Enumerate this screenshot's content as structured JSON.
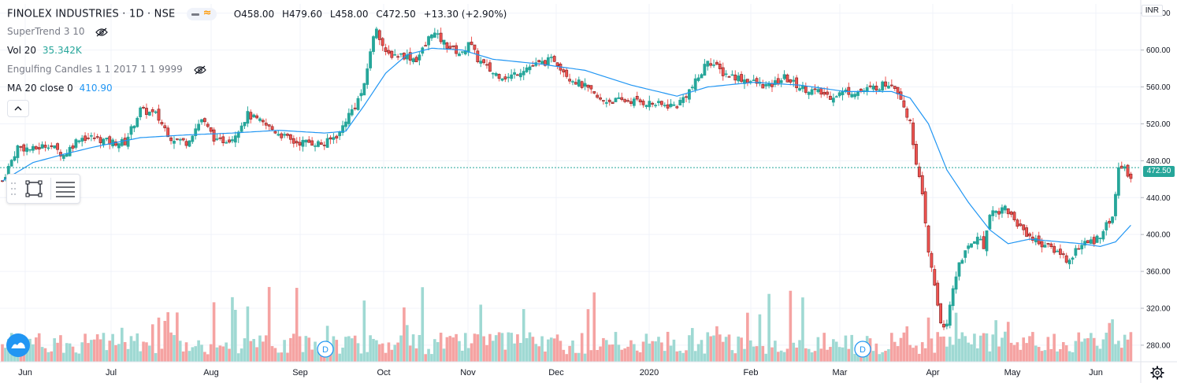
{
  "header": {
    "symbol": "FINOLEX INDUSTRIES · 1D · NSE",
    "open": "O458.00",
    "high": "H479.60",
    "low": "L458.00",
    "close": "C472.50",
    "change": "+13.30 (+2.90%)"
  },
  "indicators": [
    {
      "name": "SuperTrend 3 10",
      "value": "",
      "hidden": true
    },
    {
      "name": "Vol 20",
      "value": "35.342K",
      "hidden": false
    },
    {
      "name": "Engulfing Candles 1 1 2017 1 1 9999",
      "value": "",
      "hidden": true
    },
    {
      "name": "MA 20 close 0",
      "value": "410.90",
      "hidden": false
    }
  ],
  "currency": "INR",
  "last_price_label": "472.50",
  "colors": {
    "up": "#26a69a",
    "down": "#ef5350",
    "ma": "#2196f3",
    "grid": "#f0f3fa",
    "vol_up": "#9fd9d3",
    "vol_down": "#f5a3a2"
  },
  "icons": [
    "eye-off-icon",
    "chevron-up-icon",
    "rectangle-tool-icon",
    "lines-tool-icon",
    "tradingview-logo-icon",
    "gear-icon"
  ],
  "chart_data": {
    "type": "candlestick",
    "title": "FINOLEX INDUSTRIES · 1D · NSE",
    "y_ticks": [
      640,
      600,
      560,
      520,
      480,
      440,
      400,
      360,
      320,
      280
    ],
    "ylim": [
      262,
      650
    ],
    "x_ticks": [
      "Jun",
      "Jul",
      "Aug",
      "Sep",
      "Oct",
      "Nov",
      "Dec",
      "2020",
      "Feb",
      "Mar",
      "Apr",
      "May",
      "Jun"
    ],
    "dividend_markers": [
      "D",
      "D"
    ],
    "price_path": [
      [
        0,
        458
      ],
      [
        5,
        495
      ],
      [
        10,
        492
      ],
      [
        15,
        498
      ],
      [
        20,
        486
      ],
      [
        25,
        505
      ],
      [
        30,
        505
      ],
      [
        35,
        500
      ],
      [
        40,
        500
      ],
      [
        45,
        535
      ],
      [
        50,
        530
      ],
      [
        55,
        505
      ],
      [
        60,
        500
      ],
      [
        65,
        525
      ],
      [
        70,
        500
      ],
      [
        75,
        505
      ],
      [
        80,
        530
      ],
      [
        85,
        520
      ],
      [
        90,
        510
      ],
      [
        95,
        500
      ],
      [
        100,
        500
      ],
      [
        105,
        498
      ],
      [
        110,
        510
      ],
      [
        112,
        525
      ],
      [
        115,
        540
      ],
      [
        118,
        560
      ],
      [
        120,
        600
      ],
      [
        122,
        625
      ],
      [
        125,
        595
      ],
      [
        130,
        595
      ],
      [
        135,
        590
      ],
      [
        138,
        605
      ],
      [
        140,
        620
      ],
      [
        145,
        605
      ],
      [
        150,
        595
      ],
      [
        152,
        610
      ],
      [
        155,
        590
      ],
      [
        160,
        575
      ],
      [
        165,
        570
      ],
      [
        170,
        580
      ],
      [
        175,
        585
      ],
      [
        180,
        590
      ],
      [
        185,
        570
      ],
      [
        190,
        560
      ],
      [
        195,
        545
      ],
      [
        200,
        545
      ],
      [
        205,
        545
      ],
      [
        210,
        543
      ],
      [
        215,
        540
      ],
      [
        220,
        540
      ],
      [
        225,
        560
      ],
      [
        228,
        575
      ],
      [
        230,
        590
      ],
      [
        235,
        575
      ],
      [
        240,
        570
      ],
      [
        245,
        565
      ],
      [
        250,
        560
      ],
      [
        255,
        570
      ],
      [
        260,
        560
      ],
      [
        265,
        555
      ],
      [
        270,
        550
      ],
      [
        275,
        555
      ],
      [
        280,
        555
      ],
      [
        285,
        560
      ],
      [
        290,
        565
      ],
      [
        293,
        550
      ],
      [
        296,
        520
      ],
      [
        300,
        440
      ],
      [
        302,
        380
      ],
      [
        304,
        345
      ],
      [
        306,
        305
      ],
      [
        308,
        300
      ],
      [
        310,
        340
      ],
      [
        312,
        370
      ],
      [
        315,
        385
      ],
      [
        318,
        400
      ],
      [
        320,
        385
      ],
      [
        322,
        425
      ],
      [
        325,
        425
      ],
      [
        327,
        430
      ],
      [
        330,
        415
      ],
      [
        333,
        405
      ],
      [
        336,
        395
      ],
      [
        339,
        390
      ],
      [
        342,
        385
      ],
      [
        345,
        380
      ],
      [
        348,
        370
      ],
      [
        350,
        385
      ],
      [
        353,
        390
      ],
      [
        356,
        393
      ],
      [
        358,
        400
      ],
      [
        360,
        410
      ],
      [
        362,
        420
      ],
      [
        363,
        440
      ],
      [
        364,
        475
      ],
      [
        366,
        470
      ],
      [
        368,
        462
      ]
    ],
    "ma_20": [
      [
        0,
        458
      ],
      [
        10,
        478
      ],
      [
        20,
        487
      ],
      [
        30,
        495
      ],
      [
        45,
        505
      ],
      [
        60,
        508
      ],
      [
        75,
        510
      ],
      [
        90,
        513
      ],
      [
        105,
        510
      ],
      [
        112,
        512
      ],
      [
        118,
        540
      ],
      [
        125,
        575
      ],
      [
        132,
        595
      ],
      [
        140,
        602
      ],
      [
        150,
        600
      ],
      [
        160,
        590
      ],
      [
        175,
        585
      ],
      [
        190,
        578
      ],
      [
        205,
        562
      ],
      [
        220,
        550
      ],
      [
        230,
        560
      ],
      [
        245,
        565
      ],
      [
        260,
        562
      ],
      [
        275,
        555
      ],
      [
        290,
        555
      ],
      [
        296,
        548
      ],
      [
        302,
        520
      ],
      [
        308,
        470
      ],
      [
        315,
        435
      ],
      [
        322,
        405
      ],
      [
        328,
        390
      ],
      [
        335,
        395
      ],
      [
        345,
        392
      ],
      [
        352,
        390
      ],
      [
        358,
        387
      ],
      [
        363,
        392
      ],
      [
        368,
        410
      ]
    ],
    "volume_max": 360000
  }
}
